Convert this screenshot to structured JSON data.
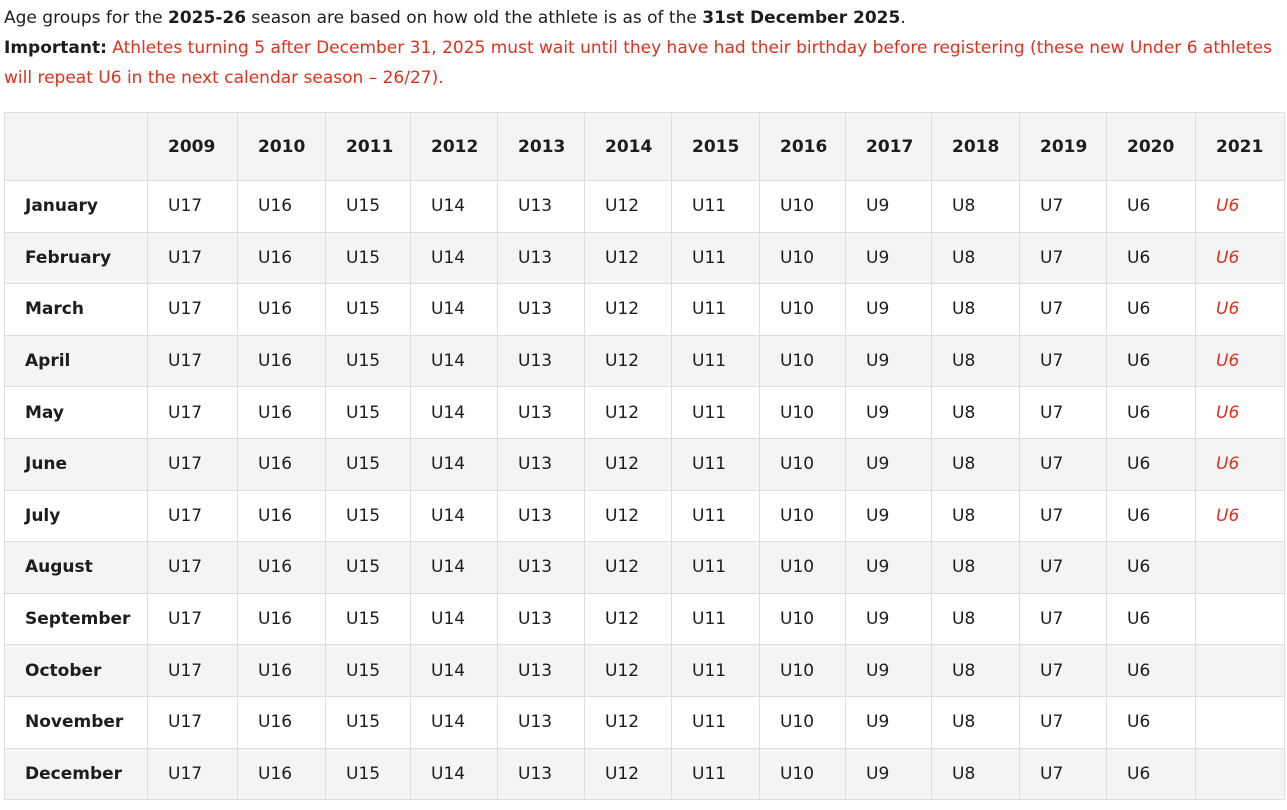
{
  "intro": {
    "line1_a": "Age groups for the ",
    "line1_b": "2025-26",
    "line1_c": " season are based on how old the athlete is as of the ",
    "line1_d": "31st December 2025",
    "line1_e": ".",
    "important_label": "Important:",
    "important_text": " Athletes turning 5 after December 31, 2025  must wait until they have had their birthday before registering (these new Under 6 athletes will repeat U6 in the next calendar season – 26/27)."
  },
  "colors": {
    "important": "#e0301e",
    "row_alt": "#f4f4f4",
    "border": "#dedede"
  },
  "table": {
    "corner": "",
    "years": [
      "2009",
      "2010",
      "2011",
      "2012",
      "2013",
      "2014",
      "2015",
      "2016",
      "2017",
      "2018",
      "2019",
      "2020",
      "2021"
    ],
    "rows": [
      {
        "month": "January",
        "cells": [
          "U17",
          "U16",
          "U15",
          "U14",
          "U13",
          "U12",
          "U11",
          "U10",
          "U9",
          "U8",
          "U7",
          "U6",
          "U6"
        ]
      },
      {
        "month": "February",
        "cells": [
          "U17",
          "U16",
          "U15",
          "U14",
          "U13",
          "U12",
          "U11",
          "U10",
          "U9",
          "U8",
          "U7",
          "U6",
          "U6"
        ]
      },
      {
        "month": "March",
        "cells": [
          "U17",
          "U16",
          "U15",
          "U14",
          "U13",
          "U12",
          "U11",
          "U10",
          "U9",
          "U8",
          "U7",
          "U6",
          "U6"
        ]
      },
      {
        "month": "April",
        "cells": [
          "U17",
          "U16",
          "U15",
          "U14",
          "U13",
          "U12",
          "U11",
          "U10",
          "U9",
          "U8",
          "U7",
          "U6",
          "U6"
        ]
      },
      {
        "month": "May",
        "cells": [
          "U17",
          "U16",
          "U15",
          "U14",
          "U13",
          "U12",
          "U11",
          "U10",
          "U9",
          "U8",
          "U7",
          "U6",
          "U6"
        ]
      },
      {
        "month": "June",
        "cells": [
          "U17",
          "U16",
          "U15",
          "U14",
          "U13",
          "U12",
          "U11",
          "U10",
          "U9",
          "U8",
          "U7",
          "U6",
          "U6"
        ]
      },
      {
        "month": "July",
        "cells": [
          "U17",
          "U16",
          "U15",
          "U14",
          "U13",
          "U12",
          "U11",
          "U10",
          "U9",
          "U8",
          "U7",
          "U6",
          "U6"
        ]
      },
      {
        "month": "August",
        "cells": [
          "U17",
          "U16",
          "U15",
          "U14",
          "U13",
          "U12",
          "U11",
          "U10",
          "U9",
          "U8",
          "U7",
          "U6",
          ""
        ]
      },
      {
        "month": "September",
        "cells": [
          "U17",
          "U16",
          "U15",
          "U14",
          "U13",
          "U12",
          "U11",
          "U10",
          "U9",
          "U8",
          "U7",
          "U6",
          ""
        ]
      },
      {
        "month": "October",
        "cells": [
          "U17",
          "U16",
          "U15",
          "U14",
          "U13",
          "U12",
          "U11",
          "U10",
          "U9",
          "U8",
          "U7",
          "U6",
          ""
        ]
      },
      {
        "month": "November",
        "cells": [
          "U17",
          "U16",
          "U15",
          "U14",
          "U13",
          "U12",
          "U11",
          "U10",
          "U9",
          "U8",
          "U7",
          "U6",
          ""
        ]
      },
      {
        "month": "December",
        "cells": [
          "U17",
          "U16",
          "U15",
          "U14",
          "U13",
          "U12",
          "U11",
          "U10",
          "U9",
          "U8",
          "U7",
          "U6",
          ""
        ]
      }
    ]
  }
}
